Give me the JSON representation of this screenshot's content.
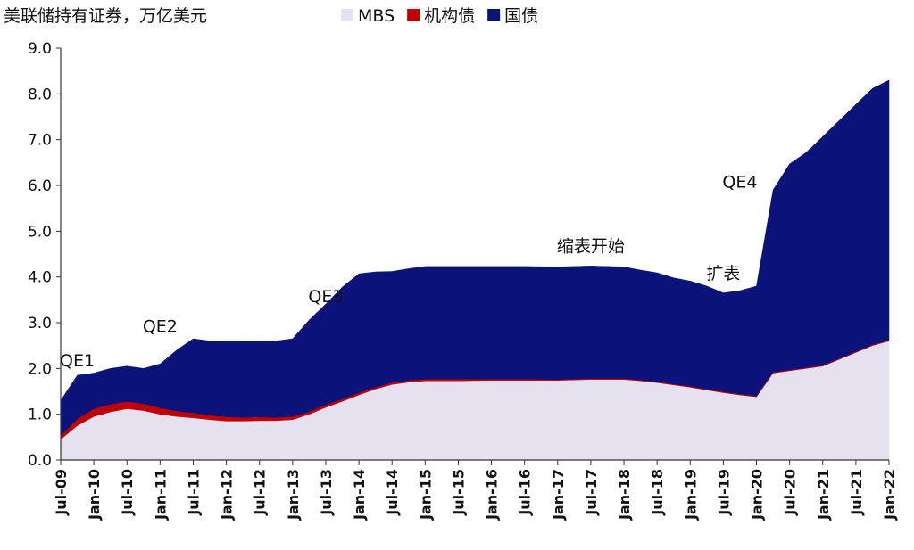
{
  "chart_data": {
    "type": "area",
    "stacked": true,
    "title": "美联储持有证券，万亿美元",
    "ylim": [
      0,
      9
    ],
    "yticks": [
      "0.0",
      "1.0",
      "2.0",
      "3.0",
      "4.0",
      "5.0",
      "6.0",
      "7.0",
      "8.0",
      "9.0"
    ],
    "xticks": [
      "Jul-09",
      "Jan-10",
      "Jul-10",
      "Jan-11",
      "Jul-11",
      "Jan-12",
      "Jul-12",
      "Jan-13",
      "Jul-13",
      "Jan-14",
      "Jul-14",
      "Jan-15",
      "Jul-15",
      "Jan-16",
      "Jul-16",
      "Jan-17",
      "Jul-17",
      "Jan-18",
      "Jul-18",
      "Jan-19",
      "Jul-19",
      "Jan-20",
      "Jul-20",
      "Jan-21",
      "Jul-21",
      "Jan-22"
    ],
    "x": [
      "Jul-09",
      "Oct-09",
      "Jan-10",
      "Apr-10",
      "Jul-10",
      "Oct-10",
      "Jan-11",
      "Apr-11",
      "Jul-11",
      "Oct-11",
      "Jan-12",
      "Apr-12",
      "Jul-12",
      "Oct-12",
      "Jan-13",
      "Apr-13",
      "Jul-13",
      "Oct-13",
      "Jan-14",
      "Apr-14",
      "Jul-14",
      "Oct-14",
      "Jan-15",
      "Jul-15",
      "Jan-16",
      "Jul-16",
      "Jan-17",
      "Jul-17",
      "Jan-18",
      "Apr-18",
      "Jul-18",
      "Oct-18",
      "Jan-19",
      "Apr-19",
      "Jul-19",
      "Oct-19",
      "Jan-20",
      "Apr-20",
      "Jul-20",
      "Oct-20",
      "Jan-21",
      "Apr-21",
      "Jul-21",
      "Oct-21",
      "Jan-22"
    ],
    "series": [
      {
        "name": "MBS",
        "color": "#e5e1ef",
        "values": [
          0.45,
          0.75,
          0.95,
          1.05,
          1.12,
          1.08,
          1.0,
          0.95,
          0.92,
          0.88,
          0.85,
          0.85,
          0.86,
          0.86,
          0.88,
          1.0,
          1.15,
          1.28,
          1.42,
          1.55,
          1.65,
          1.7,
          1.73,
          1.73,
          1.74,
          1.74,
          1.74,
          1.76,
          1.76,
          1.73,
          1.69,
          1.64,
          1.59,
          1.53,
          1.47,
          1.42,
          1.38,
          1.9,
          1.95,
          2.0,
          2.05,
          2.2,
          2.35,
          2.5,
          2.6
        ]
      },
      {
        "name": "机构债",
        "color": "#c00000",
        "values": [
          0.08,
          0.15,
          0.17,
          0.17,
          0.16,
          0.15,
          0.14,
          0.12,
          0.11,
          0.1,
          0.09,
          0.08,
          0.08,
          0.07,
          0.07,
          0.06,
          0.06,
          0.05,
          0.05,
          0.04,
          0.04,
          0.04,
          0.04,
          0.04,
          0.03,
          0.03,
          0.02,
          0.02,
          0.02,
          0.02,
          0.02,
          0.02,
          0.02,
          0.02,
          0.02,
          0.02,
          0.02,
          0.02,
          0.02,
          0.02,
          0.02,
          0.02,
          0.02,
          0.02,
          0.02
        ]
      },
      {
        "name": "国债",
        "color": "#0a137a",
        "values": [
          0.77,
          0.95,
          0.78,
          0.78,
          0.77,
          0.77,
          0.96,
          1.33,
          1.62,
          1.62,
          1.66,
          1.67,
          1.66,
          1.67,
          1.7,
          2.0,
          2.2,
          2.45,
          2.6,
          2.52,
          2.43,
          2.44,
          2.46,
          2.46,
          2.46,
          2.46,
          2.46,
          2.46,
          2.44,
          2.4,
          2.38,
          2.32,
          2.3,
          2.25,
          2.16,
          2.26,
          2.4,
          3.98,
          4.5,
          4.7,
          5.0,
          5.2,
          5.4,
          5.6,
          5.68
        ]
      }
    ],
    "annotations": [
      {
        "text": "QE1",
        "x": "Oct-09",
        "y": 2.05
      },
      {
        "text": "QE2",
        "x": "Jan-11",
        "y": 2.8
      },
      {
        "text": "QE3",
        "x": "Jul-13",
        "y": 3.45
      },
      {
        "text": "缩表开始",
        "x": "Jul-17",
        "y": 4.55
      },
      {
        "text": "扩表",
        "x": "Jul-19",
        "y": 3.95
      },
      {
        "text": "QE4",
        "x": "Oct-19",
        "y": 5.95
      }
    ],
    "legend_position": "top"
  }
}
